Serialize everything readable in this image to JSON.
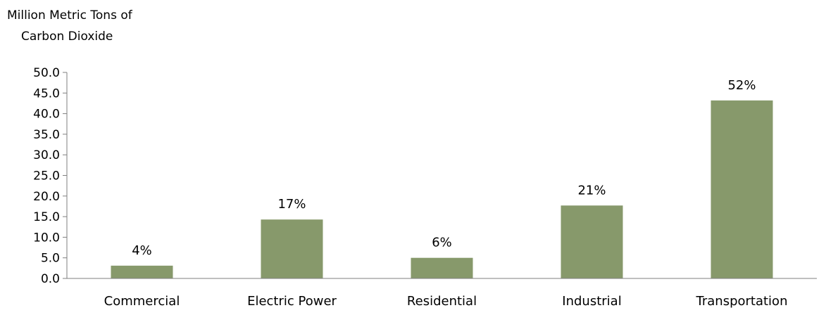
{
  "chart_data": {
    "type": "bar",
    "title": "",
    "ylabel_lines": [
      "Million Metric Tons of",
      "Carbon Dioxide"
    ],
    "xlabel": "",
    "categories": [
      "Commercial",
      "Electric Power",
      "Residential",
      "Industrial",
      "Transportation"
    ],
    "values": [
      3.1,
      14.3,
      5.0,
      17.7,
      43.2
    ],
    "data_labels": [
      "4%",
      "17%",
      "6%",
      "21%",
      "52%"
    ],
    "ylim": [
      0,
      50
    ],
    "yticks": [
      "0.0",
      "5.0",
      "10.0",
      "15.0",
      "20.0",
      "25.0",
      "30.0",
      "35.0",
      "40.0",
      "45.0",
      "50.0"
    ],
    "bar_color": "#87996b",
    "grid": false,
    "legend": "none"
  }
}
